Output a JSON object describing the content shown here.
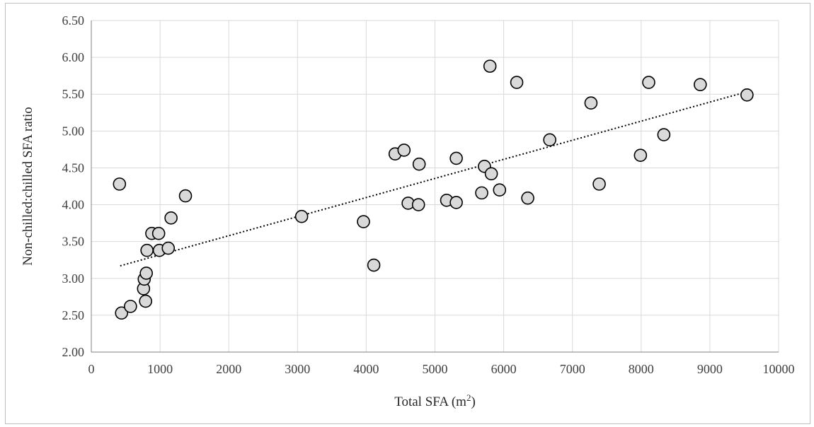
{
  "chart_data": {
    "type": "scatter",
    "xlabel": "Total SFA (m²)",
    "xlabel_main": "Total SFA (m",
    "xlabel_sup": "2",
    "xlabel_end": ")",
    "ylabel": "Non-chilled:chilled SFA ratio",
    "xlim": [
      0,
      10000
    ],
    "ylim": [
      2.0,
      6.5
    ],
    "x_ticks": [
      0,
      1000,
      2000,
      3000,
      4000,
      5000,
      6000,
      7000,
      8000,
      9000,
      10000
    ],
    "x_tick_labels": [
      "0",
      "1000",
      "2000",
      "3000",
      "4000",
      "5000",
      "6000",
      "7000",
      "8000",
      "9000",
      "10000"
    ],
    "y_ticks": [
      2.0,
      2.5,
      3.0,
      3.5,
      4.0,
      4.5,
      5.0,
      5.5,
      6.0,
      6.5
    ],
    "y_tick_labels": [
      "2.00",
      "2.50",
      "3.00",
      "3.50",
      "4.00",
      "4.50",
      "5.00",
      "5.50",
      "6.00",
      "6.50"
    ],
    "grid": "major gridlines on both axes",
    "legend": "none",
    "marker_fill": "#d9d9d9",
    "marker_edge": "#000000",
    "trendline": {
      "style": "dotted",
      "kind": "linear",
      "x": [
        420,
        9530
      ],
      "y": [
        3.17,
        5.53
      ]
    },
    "points": [
      {
        "x": 410,
        "y": 4.28
      },
      {
        "x": 440,
        "y": 2.53
      },
      {
        "x": 570,
        "y": 2.62
      },
      {
        "x": 760,
        "y": 2.86
      },
      {
        "x": 770,
        "y": 2.99
      },
      {
        "x": 790,
        "y": 2.69
      },
      {
        "x": 800,
        "y": 3.07
      },
      {
        "x": 810,
        "y": 3.38
      },
      {
        "x": 880,
        "y": 3.61
      },
      {
        "x": 980,
        "y": 3.61
      },
      {
        "x": 990,
        "y": 3.38
      },
      {
        "x": 1120,
        "y": 3.41
      },
      {
        "x": 1160,
        "y": 3.82
      },
      {
        "x": 1370,
        "y": 4.12
      },
      {
        "x": 3060,
        "y": 3.84
      },
      {
        "x": 3960,
        "y": 3.77
      },
      {
        "x": 4110,
        "y": 3.18
      },
      {
        "x": 4420,
        "y": 4.69
      },
      {
        "x": 4550,
        "y": 4.74
      },
      {
        "x": 4610,
        "y": 4.02
      },
      {
        "x": 4760,
        "y": 4.0
      },
      {
        "x": 4770,
        "y": 4.55
      },
      {
        "x": 5170,
        "y": 4.06
      },
      {
        "x": 5310,
        "y": 4.63
      },
      {
        "x": 5310,
        "y": 4.03
      },
      {
        "x": 5680,
        "y": 4.16
      },
      {
        "x": 5720,
        "y": 4.52
      },
      {
        "x": 5800,
        "y": 5.88
      },
      {
        "x": 5820,
        "y": 4.42
      },
      {
        "x": 5940,
        "y": 4.2
      },
      {
        "x": 6190,
        "y": 5.66
      },
      {
        "x": 6350,
        "y": 4.09
      },
      {
        "x": 6670,
        "y": 4.88
      },
      {
        "x": 7270,
        "y": 5.38
      },
      {
        "x": 7390,
        "y": 4.28
      },
      {
        "x": 7990,
        "y": 4.67
      },
      {
        "x": 8110,
        "y": 5.66
      },
      {
        "x": 8330,
        "y": 4.95
      },
      {
        "x": 8860,
        "y": 5.63
      },
      {
        "x": 9540,
        "y": 5.49
      }
    ]
  }
}
